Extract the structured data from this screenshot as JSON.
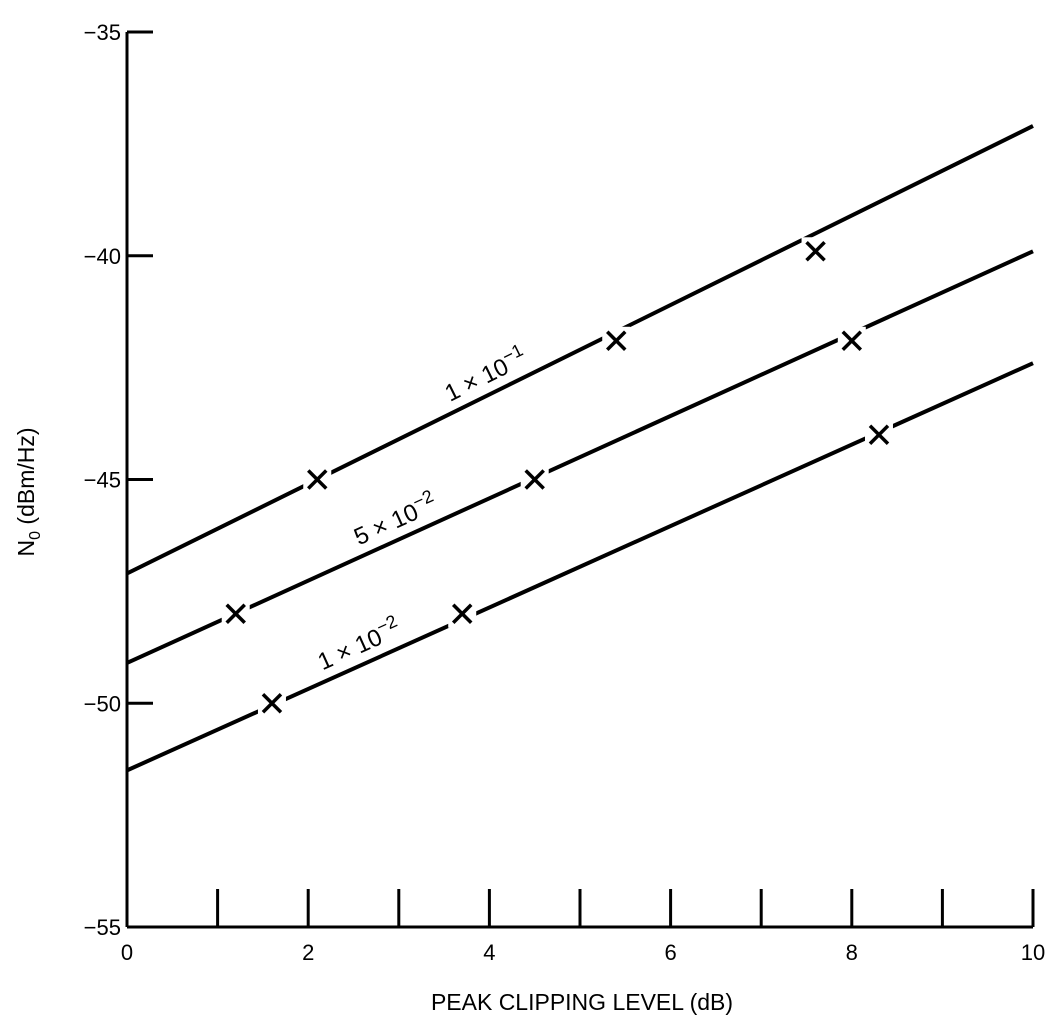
{
  "chart_data": {
    "type": "line",
    "title": "",
    "xlabel": "PEAK CLIPPING LEVEL (dB)",
    "ylabel_main": "N",
    "ylabel_sub": "0",
    "ylabel_rest": " (dBm/Hz)",
    "xlim": [
      0,
      10
    ],
    "ylim": [
      -55,
      -35
    ],
    "x_ticks": [
      0,
      2,
      4,
      6,
      8,
      10
    ],
    "x_tick_labels": [
      "0",
      "2",
      "4",
      "6",
      "8",
      "10"
    ],
    "x_minor_ticks": [
      1,
      2,
      3,
      4,
      5,
      6,
      7,
      8,
      9,
      10
    ],
    "y_ticks": [
      -35,
      -40,
      -45,
      -50,
      -55
    ],
    "y_tick_labels": [
      "−35",
      "−40",
      "−45",
      "−50",
      "−55"
    ],
    "grid": false,
    "series": [
      {
        "name": "1 × 10⁻¹",
        "label_base": "1 × 10",
        "label_exp": "−1",
        "line": {
          "x": [
            0,
            10
          ],
          "y": [
            -47.1,
            -37.1
          ]
        },
        "markers": {
          "x": [
            2.1,
            5.4,
            7.6
          ],
          "y": [
            -45.0,
            -41.9,
            -39.9
          ]
        }
      },
      {
        "name": "5 × 10⁻²",
        "label_base": "5 × 10",
        "label_exp": "−2",
        "line": {
          "x": [
            0,
            10
          ],
          "y": [
            -49.1,
            -39.9
          ]
        },
        "markers": {
          "x": [
            1.2,
            4.5,
            8.0
          ],
          "y": [
            -48.0,
            -45.0,
            -41.9
          ]
        }
      },
      {
        "name": "1 × 10⁻²",
        "label_base": "1 × 10",
        "label_exp": "−2",
        "line": {
          "x": [
            0,
            10
          ],
          "y": [
            -51.5,
            -42.4
          ]
        },
        "markers": {
          "x": [
            1.6,
            3.7,
            8.3
          ],
          "y": [
            -50.0,
            -48.0,
            -44.0
          ]
        }
      }
    ]
  }
}
